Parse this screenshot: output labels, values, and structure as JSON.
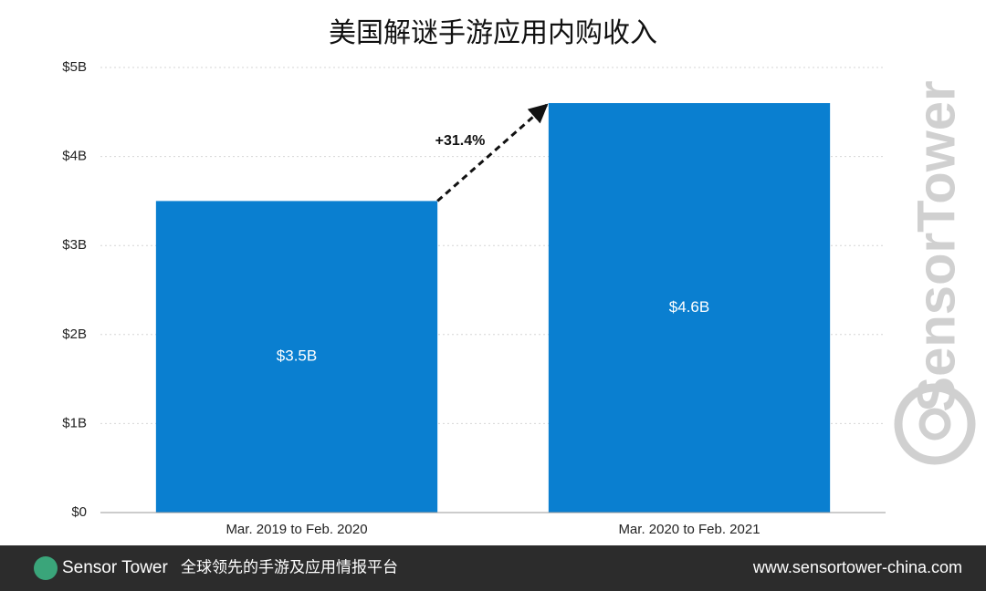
{
  "chart_data": {
    "type": "bar",
    "title": "美国解谜手游应用内购收入",
    "categories": [
      "Mar. 2019 to Feb. 2020",
      "Mar. 2020 to Feb. 2021"
    ],
    "values": [
      3.5,
      4.6
    ],
    "value_labels": [
      "$3.5B",
      "$4.6B"
    ],
    "color": "#0a7fd0",
    "ylim": [
      0,
      5
    ],
    "yticks": [
      {
        "value": 0,
        "label": "$0"
      },
      {
        "value": 1,
        "label": "$1B"
      },
      {
        "value": 2,
        "label": "$2B"
      },
      {
        "value": 3,
        "label": "$3B"
      },
      {
        "value": 4,
        "label": "$4B"
      },
      {
        "value": 5,
        "label": "$5B"
      }
    ],
    "grid": true,
    "annotation": "+31.4%"
  },
  "watermark": "SensorTower",
  "footer": {
    "brand": "Sensor Tower",
    "slogan": "全球领先的手游及应用情报平台",
    "url": "www.sensortower-china.com"
  }
}
